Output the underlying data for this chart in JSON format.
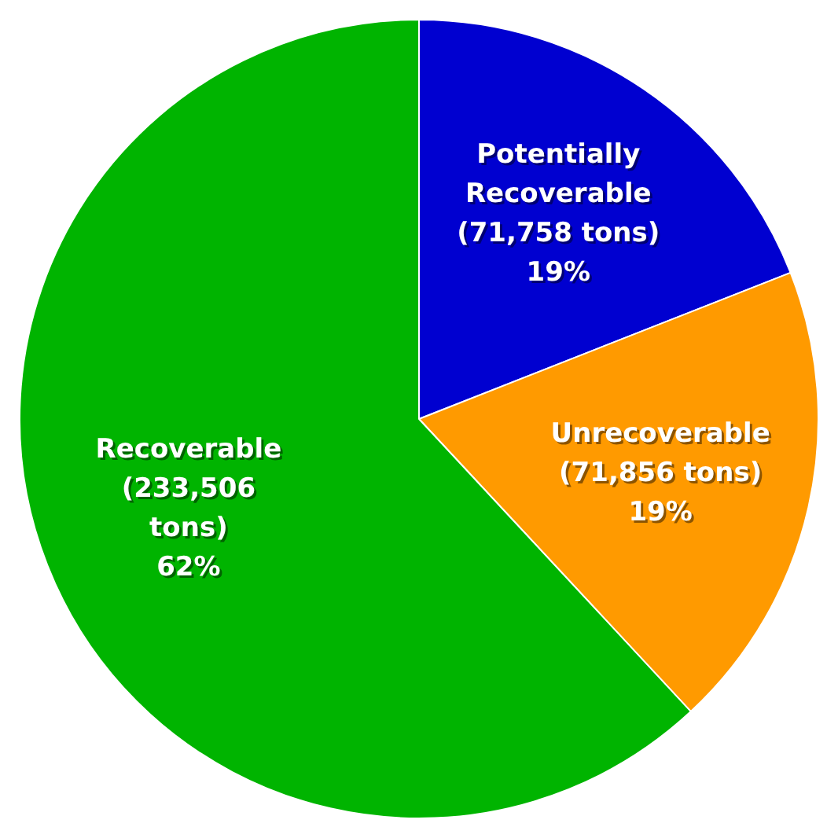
{
  "chart_data": {
    "type": "pie",
    "categories": [
      "Potentially\nRecoverable",
      "Unrecoverable",
      "Recoverable"
    ],
    "values": [
      71758,
      71856,
      233506
    ],
    "colors": [
      "#0000d0",
      "#ff9a00",
      "#00b400"
    ],
    "value_labels": [
      "(71,758 tons)\n19%",
      "(71,856 tons)\n19%",
      "(233,506\ntons)\n62%"
    ]
  }
}
